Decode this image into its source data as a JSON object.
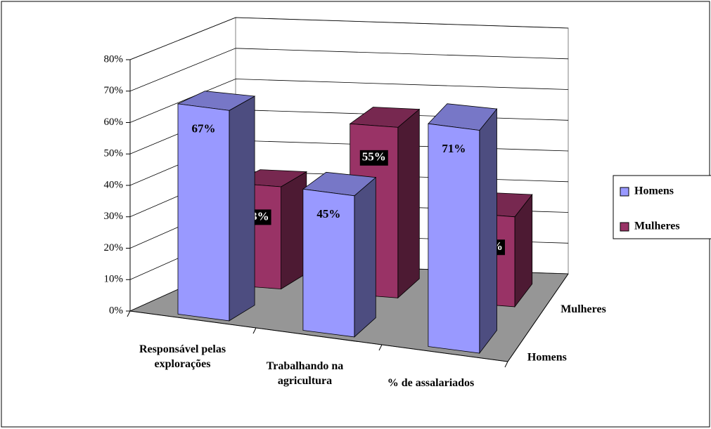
{
  "chart_data": {
    "type": "bar",
    "categories": [
      "Responsável pelas explorações",
      "Trabalhando na agricultura",
      "% de assalariados"
    ],
    "series": [
      {
        "name": "Homens",
        "color": "#9999ff",
        "values": [
          67,
          45,
          71
        ],
        "value_labels": [
          "67%",
          "45%",
          "71%"
        ]
      },
      {
        "name": "Mulheres",
        "color": "#993366",
        "values": [
          33,
          55,
          29
        ],
        "value_labels": [
          "33%",
          "55%",
          "29%"
        ]
      }
    ],
    "ylim": [
      0,
      80
    ],
    "yticks": [
      {
        "value": 0,
        "label": "0%"
      },
      {
        "value": 10,
        "label": "10%"
      },
      {
        "value": 20,
        "label": "20%"
      },
      {
        "value": 30,
        "label": "30%"
      },
      {
        "value": 40,
        "label": "40%"
      },
      {
        "value": 50,
        "label": "50%"
      },
      {
        "value": 60,
        "label": "60%"
      },
      {
        "value": 70,
        "label": "70%"
      },
      {
        "value": 80,
        "label": "80%"
      }
    ],
    "grid": true,
    "legend": "right"
  }
}
